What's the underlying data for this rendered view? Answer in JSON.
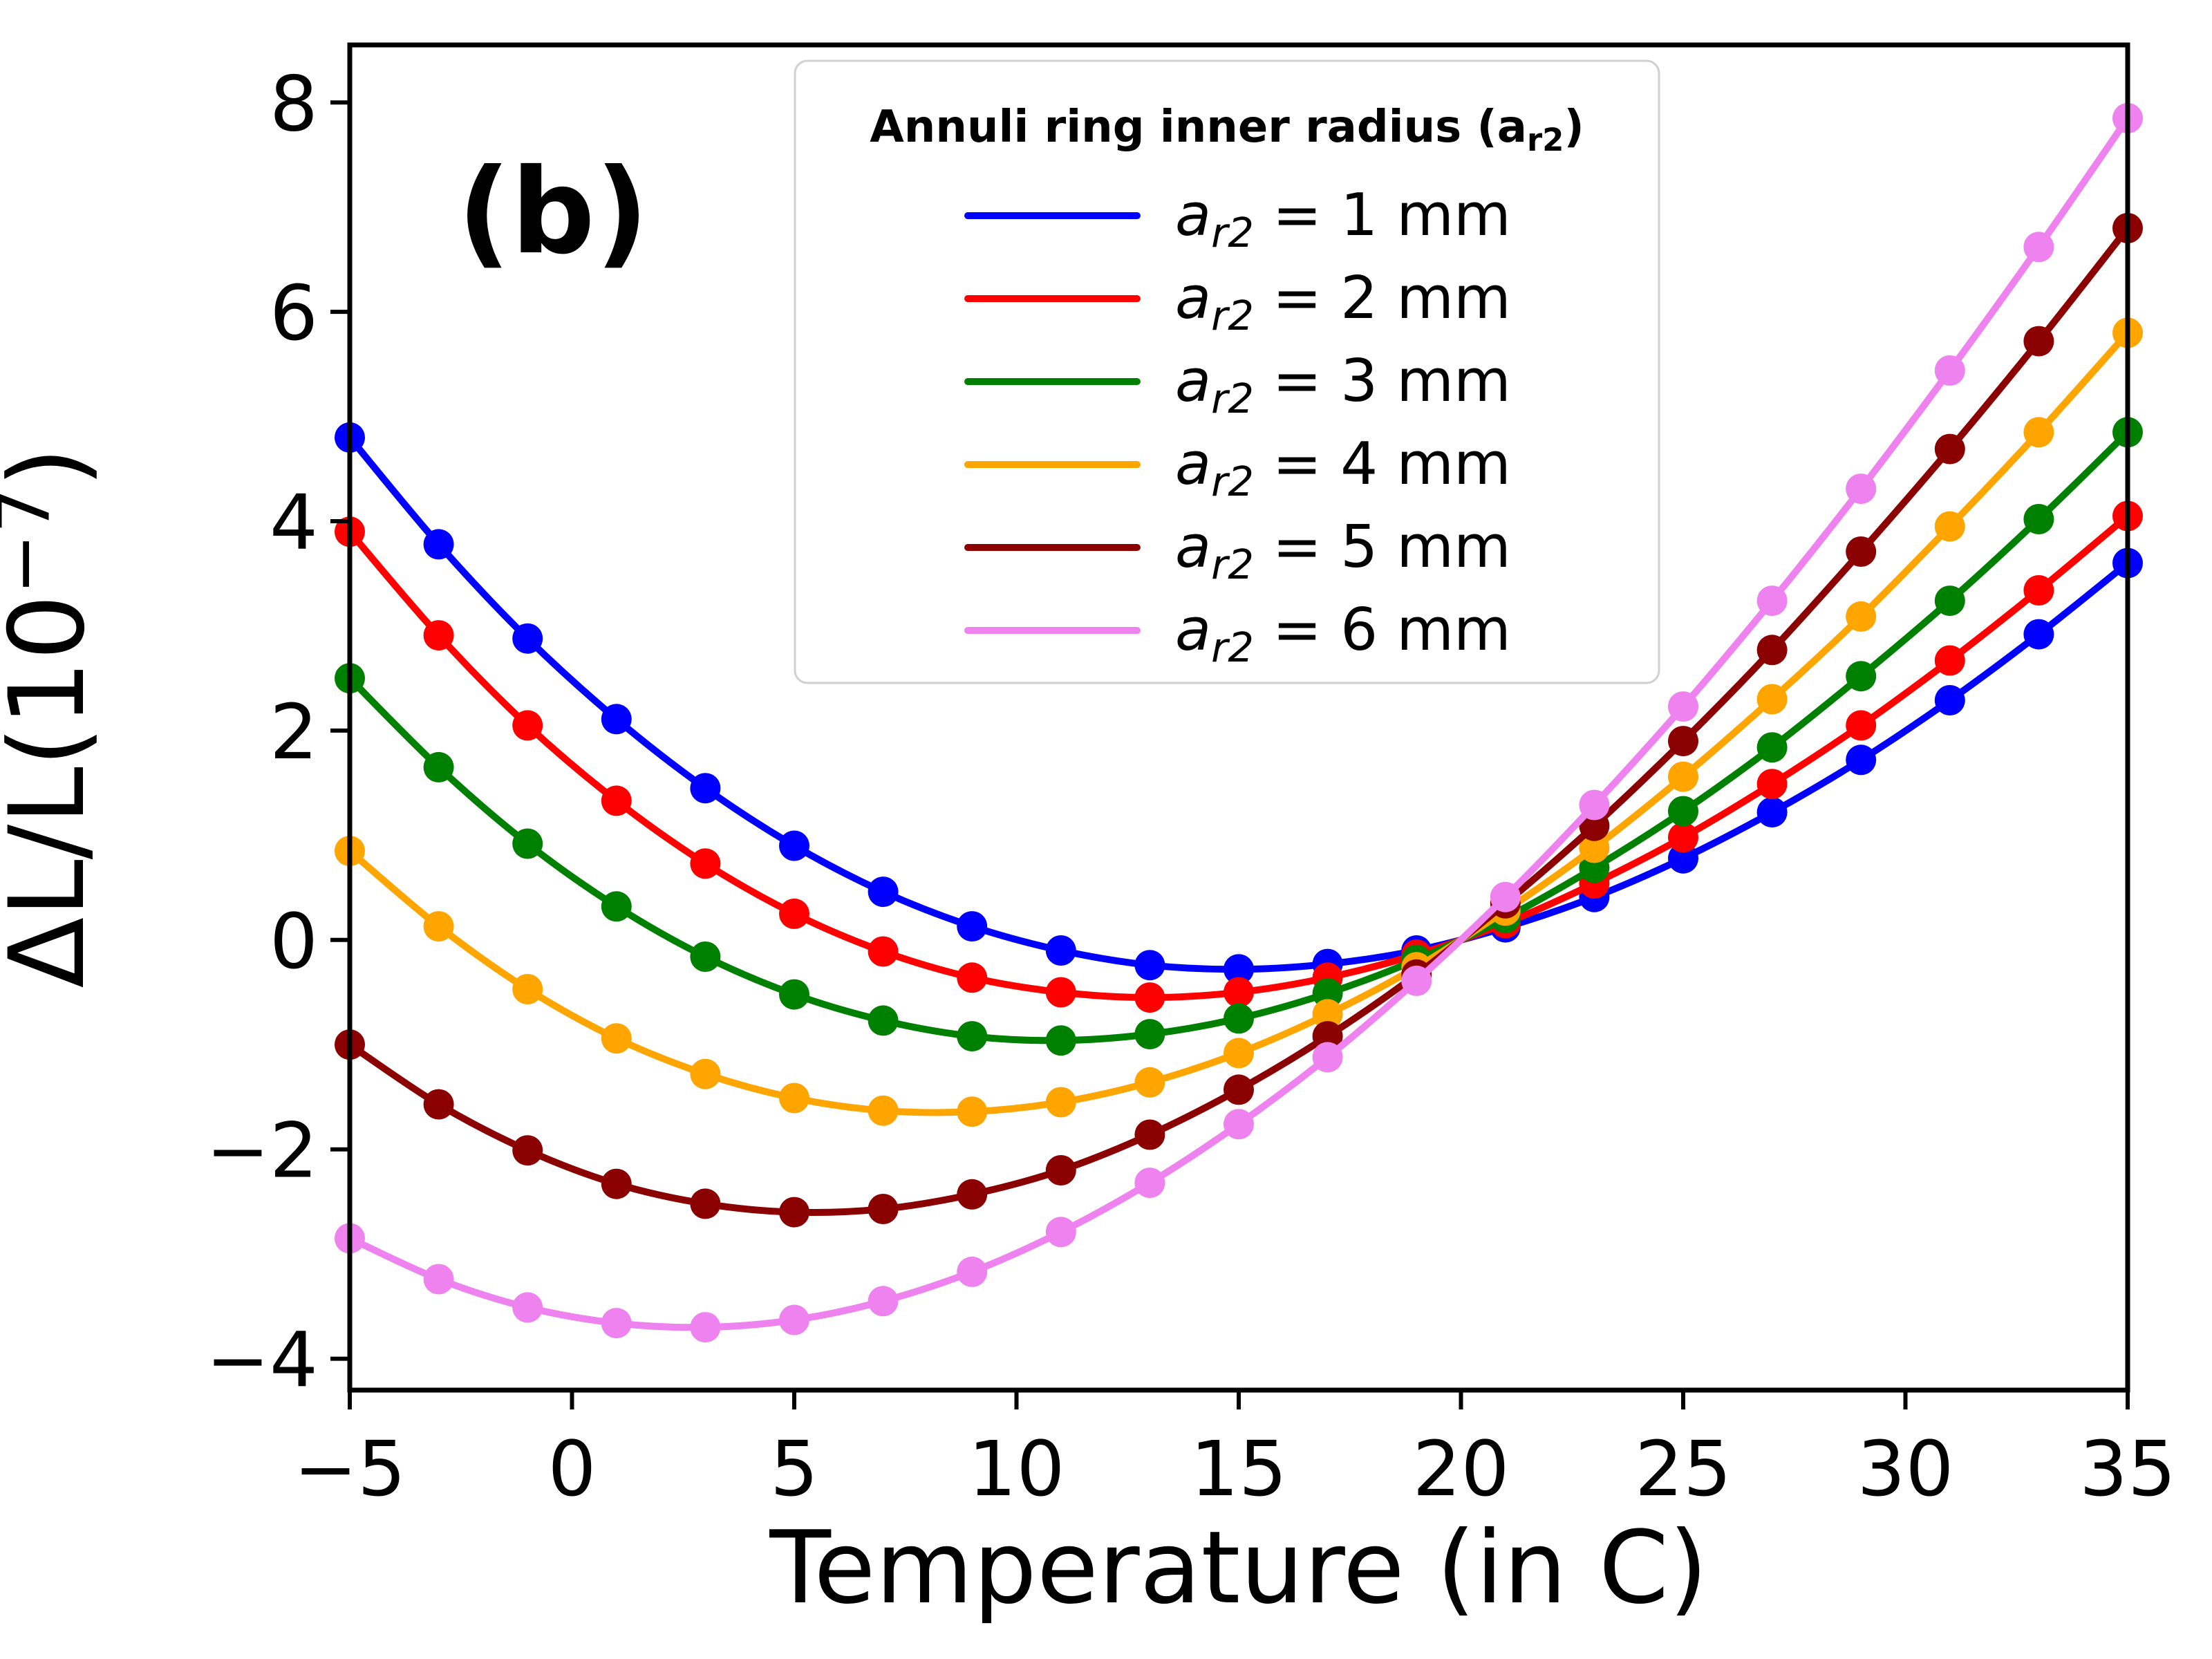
{
  "figure": {
    "panel_label": "(b)",
    "background": "#ffffff"
  },
  "chart_data": {
    "type": "line",
    "title": "",
    "xlabel": "Temperature (in C)",
    "ylabel": "ΔL/L(10⁻⁷)",
    "ylabel_parts": [
      {
        "t": "ΔL/L(10"
      },
      {
        "t": "−7",
        "sup": true
      },
      {
        "t": ")"
      }
    ],
    "xlim": [
      -5,
      35
    ],
    "ylim": [
      -4.3,
      8.55
    ],
    "x_ticks": [
      -5,
      0,
      5,
      10,
      15,
      20,
      25,
      30,
      35
    ],
    "y_ticks": [
      -4,
      -2,
      0,
      2,
      4,
      6,
      8
    ],
    "grid": false,
    "legend": {
      "position": "upper center",
      "title_plain": "Annuli ring inner radius (a_r2)",
      "title_parts": [
        {
          "t": "Annuli ring inner radius (a"
        },
        {
          "t": "r2",
          "sub": true
        },
        {
          "t": ")"
        }
      ]
    },
    "x": [
      -5,
      -3,
      -1,
      1,
      3,
      5,
      7,
      9,
      11,
      13,
      15,
      17,
      19,
      21,
      23,
      25,
      27,
      29,
      31,
      33,
      35
    ],
    "series": [
      {
        "id": "1mm",
        "radius_mm": 1,
        "label_plain": "a_r2 = 1 mm",
        "label_parts": [
          {
            "t": "a",
            "italic": true
          },
          {
            "t": "r2",
            "sub": true,
            "italic": true
          },
          {
            "t": " = 1 mm"
          }
        ],
        "color": "#0000ff",
        "values": [
          4.8,
          3.78,
          2.88,
          2.11,
          1.45,
          0.9,
          0.46,
          0.13,
          -0.1,
          -0.24,
          -0.28,
          -0.23,
          -0.1,
          0.12,
          0.41,
          0.78,
          1.22,
          1.72,
          2.29,
          2.92,
          3.6
        ]
      },
      {
        "id": "2mm",
        "radius_mm": 2,
        "label_plain": "a_r2 = 2 mm",
        "label_parts": [
          {
            "t": "a",
            "italic": true
          },
          {
            "t": "r2",
            "sub": true,
            "italic": true
          },
          {
            "t": " = 2 mm"
          }
        ],
        "color": "#ff0000",
        "values": [
          3.9,
          2.91,
          2.05,
          1.33,
          0.73,
          0.25,
          -0.11,
          -0.36,
          -0.5,
          -0.55,
          -0.5,
          -0.36,
          -0.14,
          0.16,
          0.54,
          0.98,
          1.49,
          2.05,
          2.67,
          3.34,
          4.05
        ]
      },
      {
        "id": "3mm",
        "radius_mm": 3,
        "label_plain": "a_r2 = 3 mm",
        "label_parts": [
          {
            "t": "a",
            "italic": true
          },
          {
            "t": "r2",
            "sub": true,
            "italic": true
          },
          {
            "t": " = 3 mm"
          }
        ],
        "color": "#008000",
        "values": [
          2.5,
          1.65,
          0.92,
          0.32,
          -0.16,
          -0.52,
          -0.77,
          -0.92,
          -0.96,
          -0.9,
          -0.75,
          -0.51,
          -0.19,
          0.21,
          0.69,
          1.23,
          1.84,
          2.52,
          3.24,
          4.02,
          4.85
        ]
      },
      {
        "id": "4mm",
        "radius_mm": 4,
        "label_plain": "a_r2 = 4 mm",
        "label_parts": [
          {
            "t": "a",
            "italic": true
          },
          {
            "t": "r2",
            "sub": true,
            "italic": true
          },
          {
            "t": " = 4 mm"
          }
        ],
        "color": "#ffa500",
        "values": [
          0.85,
          0.13,
          -0.47,
          -0.94,
          -1.28,
          -1.51,
          -1.63,
          -1.64,
          -1.55,
          -1.36,
          -1.08,
          -0.71,
          -0.26,
          0.28,
          0.88,
          1.56,
          2.3,
          3.09,
          3.95,
          4.85,
          5.8
        ]
      },
      {
        "id": "5mm",
        "radius_mm": 5,
        "label_plain": "a_r2 = 5 mm",
        "label_parts": [
          {
            "t": "a",
            "italic": true
          },
          {
            "t": "r2",
            "sub": true,
            "italic": true
          },
          {
            "t": " = 5 mm"
          }
        ],
        "color": "#8b0000",
        "values": [
          -1.0,
          -1.57,
          -2.01,
          -2.33,
          -2.52,
          -2.6,
          -2.57,
          -2.43,
          -2.2,
          -1.86,
          -1.43,
          -0.92,
          -0.33,
          0.35,
          1.09,
          1.9,
          2.77,
          3.71,
          4.69,
          5.72,
          6.8
        ]
      },
      {
        "id": "6mm",
        "radius_mm": 6,
        "label_plain": "a_r2 = 6 mm",
        "label_parts": [
          {
            "t": "a",
            "italic": true
          },
          {
            "t": "r2",
            "sub": true,
            "italic": true
          },
          {
            "t": " = 6 mm"
          }
        ],
        "color": "#ee82ee",
        "values": [
          -2.85,
          -3.24,
          -3.51,
          -3.66,
          -3.7,
          -3.63,
          -3.45,
          -3.17,
          -2.79,
          -2.32,
          -1.76,
          -1.12,
          -0.39,
          0.41,
          1.29,
          2.23,
          3.24,
          4.31,
          5.44,
          6.62,
          7.85
        ]
      }
    ]
  }
}
